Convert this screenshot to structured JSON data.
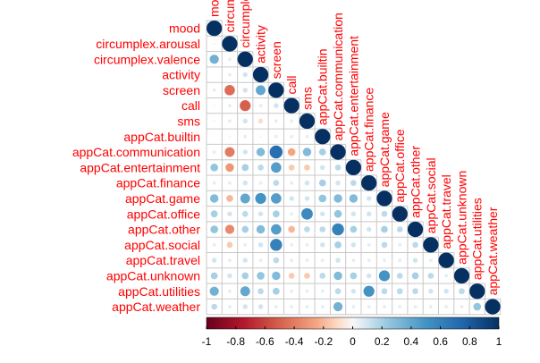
{
  "chart_data": {
    "type": "heatmap",
    "variables": [
      "mood",
      "circumplex.arousal",
      "circumplex.valence",
      "activity",
      "screen",
      "call",
      "sms",
      "appCat.builtin",
      "appCat.communication",
      "appCat.entertainment",
      "appCat.finance",
      "appCat.game",
      "appCat.office",
      "appCat.other",
      "appCat.social",
      "appCat.travel",
      "appCat.unknown",
      "appCat.utilities",
      "appCat.weather"
    ],
    "column_labels": [
      "mood",
      "circumplex.arousal",
      "circumplex.valence",
      "activity",
      "screen",
      "call",
      "sms",
      "appCat.builtin",
      "appCat.communication",
      "appCat.entertainment",
      "appCat.finance",
      "appCat.game",
      "appCat.office",
      "appCat.other",
      "appCat.social",
      "appCat.travel",
      "appCat.unknown",
      "appCat.utilities",
      "appCat.weather"
    ],
    "layout": "lower triangle with diagonal, circle markers",
    "lower_triangle_values": [
      [
        1
      ],
      [
        0.02,
        1
      ],
      [
        0.35,
        0.05,
        1
      ],
      [
        0.0,
        0.05,
        0.1,
        1
      ],
      [
        0.05,
        -0.45,
        0.1,
        0.4,
        1
      ],
      [
        0.02,
        0.05,
        -0.5,
        0.05,
        0.1,
        1
      ],
      [
        0.02,
        0.05,
        0.1,
        -0.1,
        0.05,
        0.05,
        1
      ],
      [
        0.0,
        0.02,
        0.05,
        0.02,
        0.05,
        0.05,
        0.05,
        1
      ],
      [
        0.05,
        -0.4,
        0.1,
        0.3,
        0.7,
        -0.25,
        0.3,
        0.2,
        1
      ],
      [
        0.25,
        -0.3,
        0.2,
        0.15,
        0.45,
        -0.15,
        -0.15,
        0.1,
        0.15,
        1
      ],
      [
        0.05,
        0.05,
        0.1,
        0.05,
        0.15,
        0.05,
        0.1,
        0.2,
        0.1,
        0.15,
        1
      ],
      [
        0.3,
        -0.2,
        0.4,
        0.5,
        0.45,
        0.1,
        0.1,
        0.25,
        0.3,
        0.3,
        0.1,
        1
      ],
      [
        0.2,
        0.1,
        0.15,
        0.1,
        0.2,
        0.05,
        0.55,
        0.1,
        0.25,
        0.1,
        0.1,
        0.15,
        1
      ],
      [
        0.25,
        -0.35,
        0.2,
        0.3,
        0.45,
        -0.2,
        0.15,
        0.15,
        0.6,
        0.2,
        0.1,
        0.2,
        0.15,
        1
      ],
      [
        0.05,
        -0.15,
        0.05,
        0.1,
        0.6,
        -0.05,
        0.05,
        0.1,
        0.2,
        0.1,
        0.05,
        0.15,
        0.05,
        0.15,
        1
      ],
      [
        0.1,
        0.05,
        0.1,
        0.05,
        0.15,
        0.05,
        0.05,
        0.05,
        0.1,
        0.05,
        0.05,
        0.05,
        0.05,
        0.1,
        0.05,
        1
      ],
      [
        0.2,
        0.1,
        0.2,
        0.25,
        0.3,
        -0.15,
        -0.15,
        0.15,
        0.3,
        0.2,
        0.1,
        0.5,
        0.15,
        0.2,
        0.15,
        0.05,
        1
      ],
      [
        0.35,
        0.05,
        0.4,
        0.15,
        0.2,
        0.05,
        0.05,
        0.05,
        0.15,
        0.1,
        0.5,
        0.15,
        0.15,
        0.15,
        0.1,
        0.1,
        0.15,
        1
      ],
      [
        0.15,
        0.05,
        0.1,
        0.1,
        0.05,
        0.05,
        0.05,
        0.05,
        0.35,
        0.05,
        0.05,
        0.05,
        0.05,
        0.05,
        0.05,
        0.05,
        0.05,
        0.25,
        1
      ]
    ],
    "colorbar": {
      "ticks": [
        "-1",
        "-0.8",
        "-0.6",
        "-0.4",
        "-0.2",
        "0",
        "0.2",
        "0.4",
        "0.6",
        "0.8",
        "1"
      ],
      "range": [
        -1,
        1
      ],
      "low_color": "#67001f",
      "mid_color": "#f7f7f7",
      "high_color": "#053061"
    },
    "label_color": "#ff0000",
    "grid": true
  }
}
